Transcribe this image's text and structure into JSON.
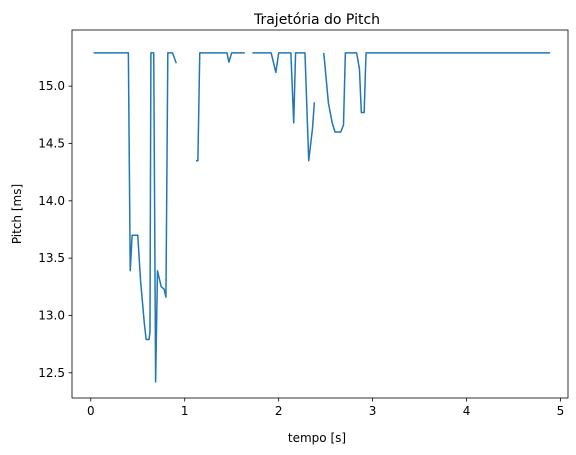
{
  "chart_data": {
    "type": "line",
    "title": "Trajetória do Pitch",
    "xlabel": "tempo [s]",
    "ylabel": "Pitch [ms]",
    "xlim": [
      -0.2,
      5.08
    ],
    "ylim": [
      12.28,
      15.49
    ],
    "xticks": [
      0,
      1,
      2,
      3,
      4,
      5
    ],
    "xtick_labels": [
      "0",
      "1",
      "2",
      "3",
      "4",
      "5"
    ],
    "yticks": [
      12.5,
      13.0,
      13.5,
      14.0,
      14.5,
      15.0
    ],
    "ytick_labels": [
      "12.5",
      "13.0",
      "13.5",
      "14.0",
      "14.5",
      "15.0"
    ],
    "grid": false,
    "legend": "none",
    "series": [
      {
        "color": "#1f77b4",
        "segments": [
          [
            [
              0.03,
              15.29
            ],
            [
              0.4,
              15.29
            ],
            [
              0.42,
              13.39
            ],
            [
              0.44,
              13.7
            ],
            [
              0.5,
              13.7
            ],
            [
              0.53,
              13.3
            ],
            [
              0.57,
              12.93
            ],
            [
              0.59,
              12.79
            ],
            [
              0.62,
              12.79
            ],
            [
              0.63,
              12.86
            ],
            [
              0.64,
              15.29
            ],
            [
              0.67,
              15.29
            ],
            [
              0.69,
              12.42
            ],
            [
              0.71,
              13.39
            ],
            [
              0.75,
              13.25
            ],
            [
              0.78,
              13.23
            ],
            [
              0.8,
              13.16
            ],
            [
              0.82,
              15.29
            ],
            [
              0.87,
              15.29
            ],
            [
              0.91,
              15.2
            ]
          ],
          [
            [
              1.12,
              14.35
            ],
            [
              1.14,
              14.35
            ],
            [
              1.16,
              15.29
            ],
            [
              1.45,
              15.29
            ],
            [
              1.47,
              15.21
            ],
            [
              1.5,
              15.29
            ],
            [
              1.64,
              15.29
            ]
          ],
          [
            [
              1.72,
              15.29
            ],
            [
              1.92,
              15.29
            ],
            [
              1.97,
              15.12
            ],
            [
              2.0,
              15.29
            ],
            [
              2.13,
              15.29
            ],
            [
              2.16,
              14.68
            ],
            [
              2.18,
              15.29
            ],
            [
              2.28,
              15.29
            ],
            [
              2.32,
              14.35
            ],
            [
              2.36,
              14.63
            ],
            [
              2.38,
              14.86
            ]
          ],
          [
            [
              2.48,
              15.29
            ],
            [
              2.53,
              14.85
            ],
            [
              2.57,
              14.68
            ],
            [
              2.6,
              14.6
            ],
            [
              2.66,
              14.6
            ],
            [
              2.69,
              14.66
            ],
            [
              2.71,
              15.29
            ],
            [
              2.83,
              15.29
            ],
            [
              2.86,
              15.15
            ],
            [
              2.88,
              14.77
            ],
            [
              2.91,
              14.77
            ],
            [
              2.93,
              15.29
            ],
            [
              4.89,
              15.29
            ]
          ]
        ]
      }
    ]
  }
}
